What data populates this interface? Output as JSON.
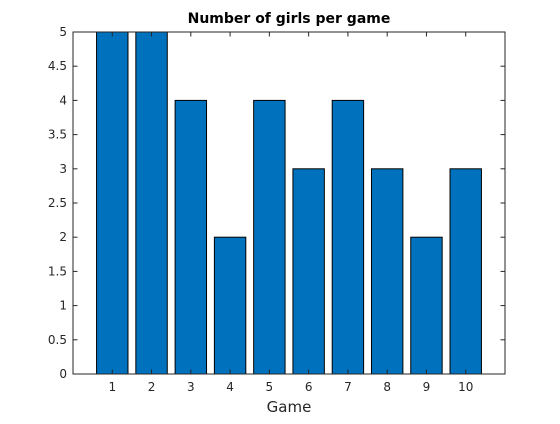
{
  "chart_data": {
    "type": "bar",
    "title": "Number of girls per game",
    "xlabel": "Game",
    "ylabel": "",
    "categories": [
      "1",
      "2",
      "3",
      "4",
      "5",
      "6",
      "7",
      "8",
      "9",
      "10"
    ],
    "values": [
      5,
      5,
      4,
      2,
      4,
      3,
      4,
      3,
      2,
      3
    ],
    "ylim": [
      0,
      5
    ],
    "xlim": [
      0,
      11
    ],
    "yticks": [
      "0",
      "0.5",
      "1",
      "1.5",
      "2",
      "2.5",
      "3",
      "3.5",
      "4",
      "4.5",
      "5"
    ],
    "grid": false,
    "box": true,
    "bar_color": "#0072BD",
    "edge_color": "#000000"
  }
}
